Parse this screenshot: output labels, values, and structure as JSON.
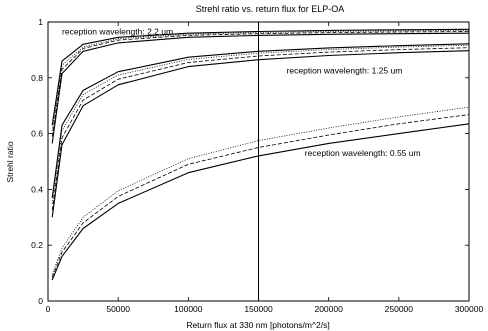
{
  "chart_data": {
    "type": "line",
    "title": "Strehl ratio vs. return flux for ELP-OA",
    "xlabel": "Return flux at 330 nm [photons/m^2/s]",
    "ylabel": "Strehl ratio",
    "xlim": [
      0,
      300000
    ],
    "ylim": [
      0,
      1
    ],
    "x_ticks": [
      0,
      50000,
      100000,
      150000,
      200000,
      250000,
      300000
    ],
    "y_ticks": [
      0,
      0.2,
      0.4,
      0.6,
      0.8,
      1
    ],
    "x_tick_labels": [
      "0",
      "50000",
      "100000",
      "150000",
      "200000",
      "250000",
      "300000"
    ],
    "y_tick_labels": [
      "0",
      "0.2",
      "0.4",
      "0.6",
      "0.8",
      "1"
    ],
    "grid": false,
    "reference_line_x": 150000,
    "annotations": [
      {
        "text": "reception wavelength: 2.2 um",
        "x": 10000,
        "y": 0.955
      },
      {
        "text": "reception wavelength: 1.25 um",
        "x": 170000,
        "y": 0.815
      },
      {
        "text": "reception wavelength: 0.55 um",
        "x": 183000,
        "y": 0.52
      }
    ],
    "series": [
      {
        "group": "2.2 um",
        "style": "solid",
        "x": [
          3000,
          10000,
          25000,
          50000,
          100000,
          150000,
          200000,
          250000,
          300000
        ],
        "y": [
          0.565,
          0.815,
          0.895,
          0.925,
          0.945,
          0.952,
          0.956,
          0.958,
          0.96
        ]
      },
      {
        "group": "2.2 um",
        "style": "dashed",
        "x": [
          3000,
          10000,
          25000,
          50000,
          100000,
          150000,
          200000,
          250000,
          300000
        ],
        "y": [
          0.59,
          0.83,
          0.905,
          0.935,
          0.952,
          0.958,
          0.962,
          0.964,
          0.966
        ]
      },
      {
        "group": "2.2 um",
        "style": "dotted",
        "x": [
          3000,
          10000,
          25000,
          50000,
          100000,
          150000,
          200000,
          250000,
          300000
        ],
        "y": [
          0.61,
          0.845,
          0.91,
          0.94,
          0.956,
          0.962,
          0.966,
          0.968,
          0.97
        ]
      },
      {
        "group": "2.2 um",
        "style": "solid",
        "x": [
          3000,
          10000,
          25000,
          50000,
          100000,
          150000,
          200000,
          250000,
          300000
        ],
        "y": [
          0.63,
          0.86,
          0.92,
          0.945,
          0.96,
          0.966,
          0.97,
          0.972,
          0.974
        ]
      },
      {
        "group": "1.25 um",
        "style": "solid",
        "x": [
          3000,
          10000,
          25000,
          50000,
          100000,
          150000,
          200000,
          250000,
          300000
        ],
        "y": [
          0.3,
          0.56,
          0.7,
          0.775,
          0.84,
          0.865,
          0.88,
          0.89,
          0.897
        ]
      },
      {
        "group": "1.25 um",
        "style": "dashed",
        "x": [
          3000,
          10000,
          25000,
          50000,
          100000,
          150000,
          200000,
          250000,
          300000
        ],
        "y": [
          0.325,
          0.585,
          0.72,
          0.795,
          0.855,
          0.878,
          0.892,
          0.901,
          0.908
        ]
      },
      {
        "group": "1.25 um",
        "style": "dotted",
        "x": [
          3000,
          10000,
          25000,
          50000,
          100000,
          150000,
          200000,
          250000,
          300000
        ],
        "y": [
          0.35,
          0.61,
          0.74,
          0.81,
          0.866,
          0.888,
          0.901,
          0.91,
          0.917
        ]
      },
      {
        "group": "1.25 um",
        "style": "solid",
        "x": [
          3000,
          10000,
          25000,
          50000,
          100000,
          150000,
          200000,
          250000,
          300000
        ],
        "y": [
          0.37,
          0.63,
          0.755,
          0.822,
          0.874,
          0.895,
          0.907,
          0.915,
          0.922
        ]
      },
      {
        "group": "0.55 um",
        "style": "solid",
        "x": [
          3000,
          10000,
          25000,
          50000,
          100000,
          150000,
          200000,
          250000,
          300000
        ],
        "y": [
          0.075,
          0.16,
          0.26,
          0.35,
          0.46,
          0.52,
          0.565,
          0.6,
          0.635
        ]
      },
      {
        "group": "0.55 um",
        "style": "dashed",
        "x": [
          3000,
          10000,
          25000,
          50000,
          100000,
          150000,
          200000,
          250000,
          300000
        ],
        "y": [
          0.085,
          0.175,
          0.28,
          0.375,
          0.49,
          0.55,
          0.595,
          0.635,
          0.668
        ]
      },
      {
        "group": "0.55 um",
        "style": "dotted",
        "x": [
          3000,
          10000,
          25000,
          50000,
          100000,
          150000,
          200000,
          250000,
          300000
        ],
        "y": [
          0.095,
          0.19,
          0.3,
          0.395,
          0.51,
          0.575,
          0.62,
          0.66,
          0.695
        ]
      }
    ]
  }
}
